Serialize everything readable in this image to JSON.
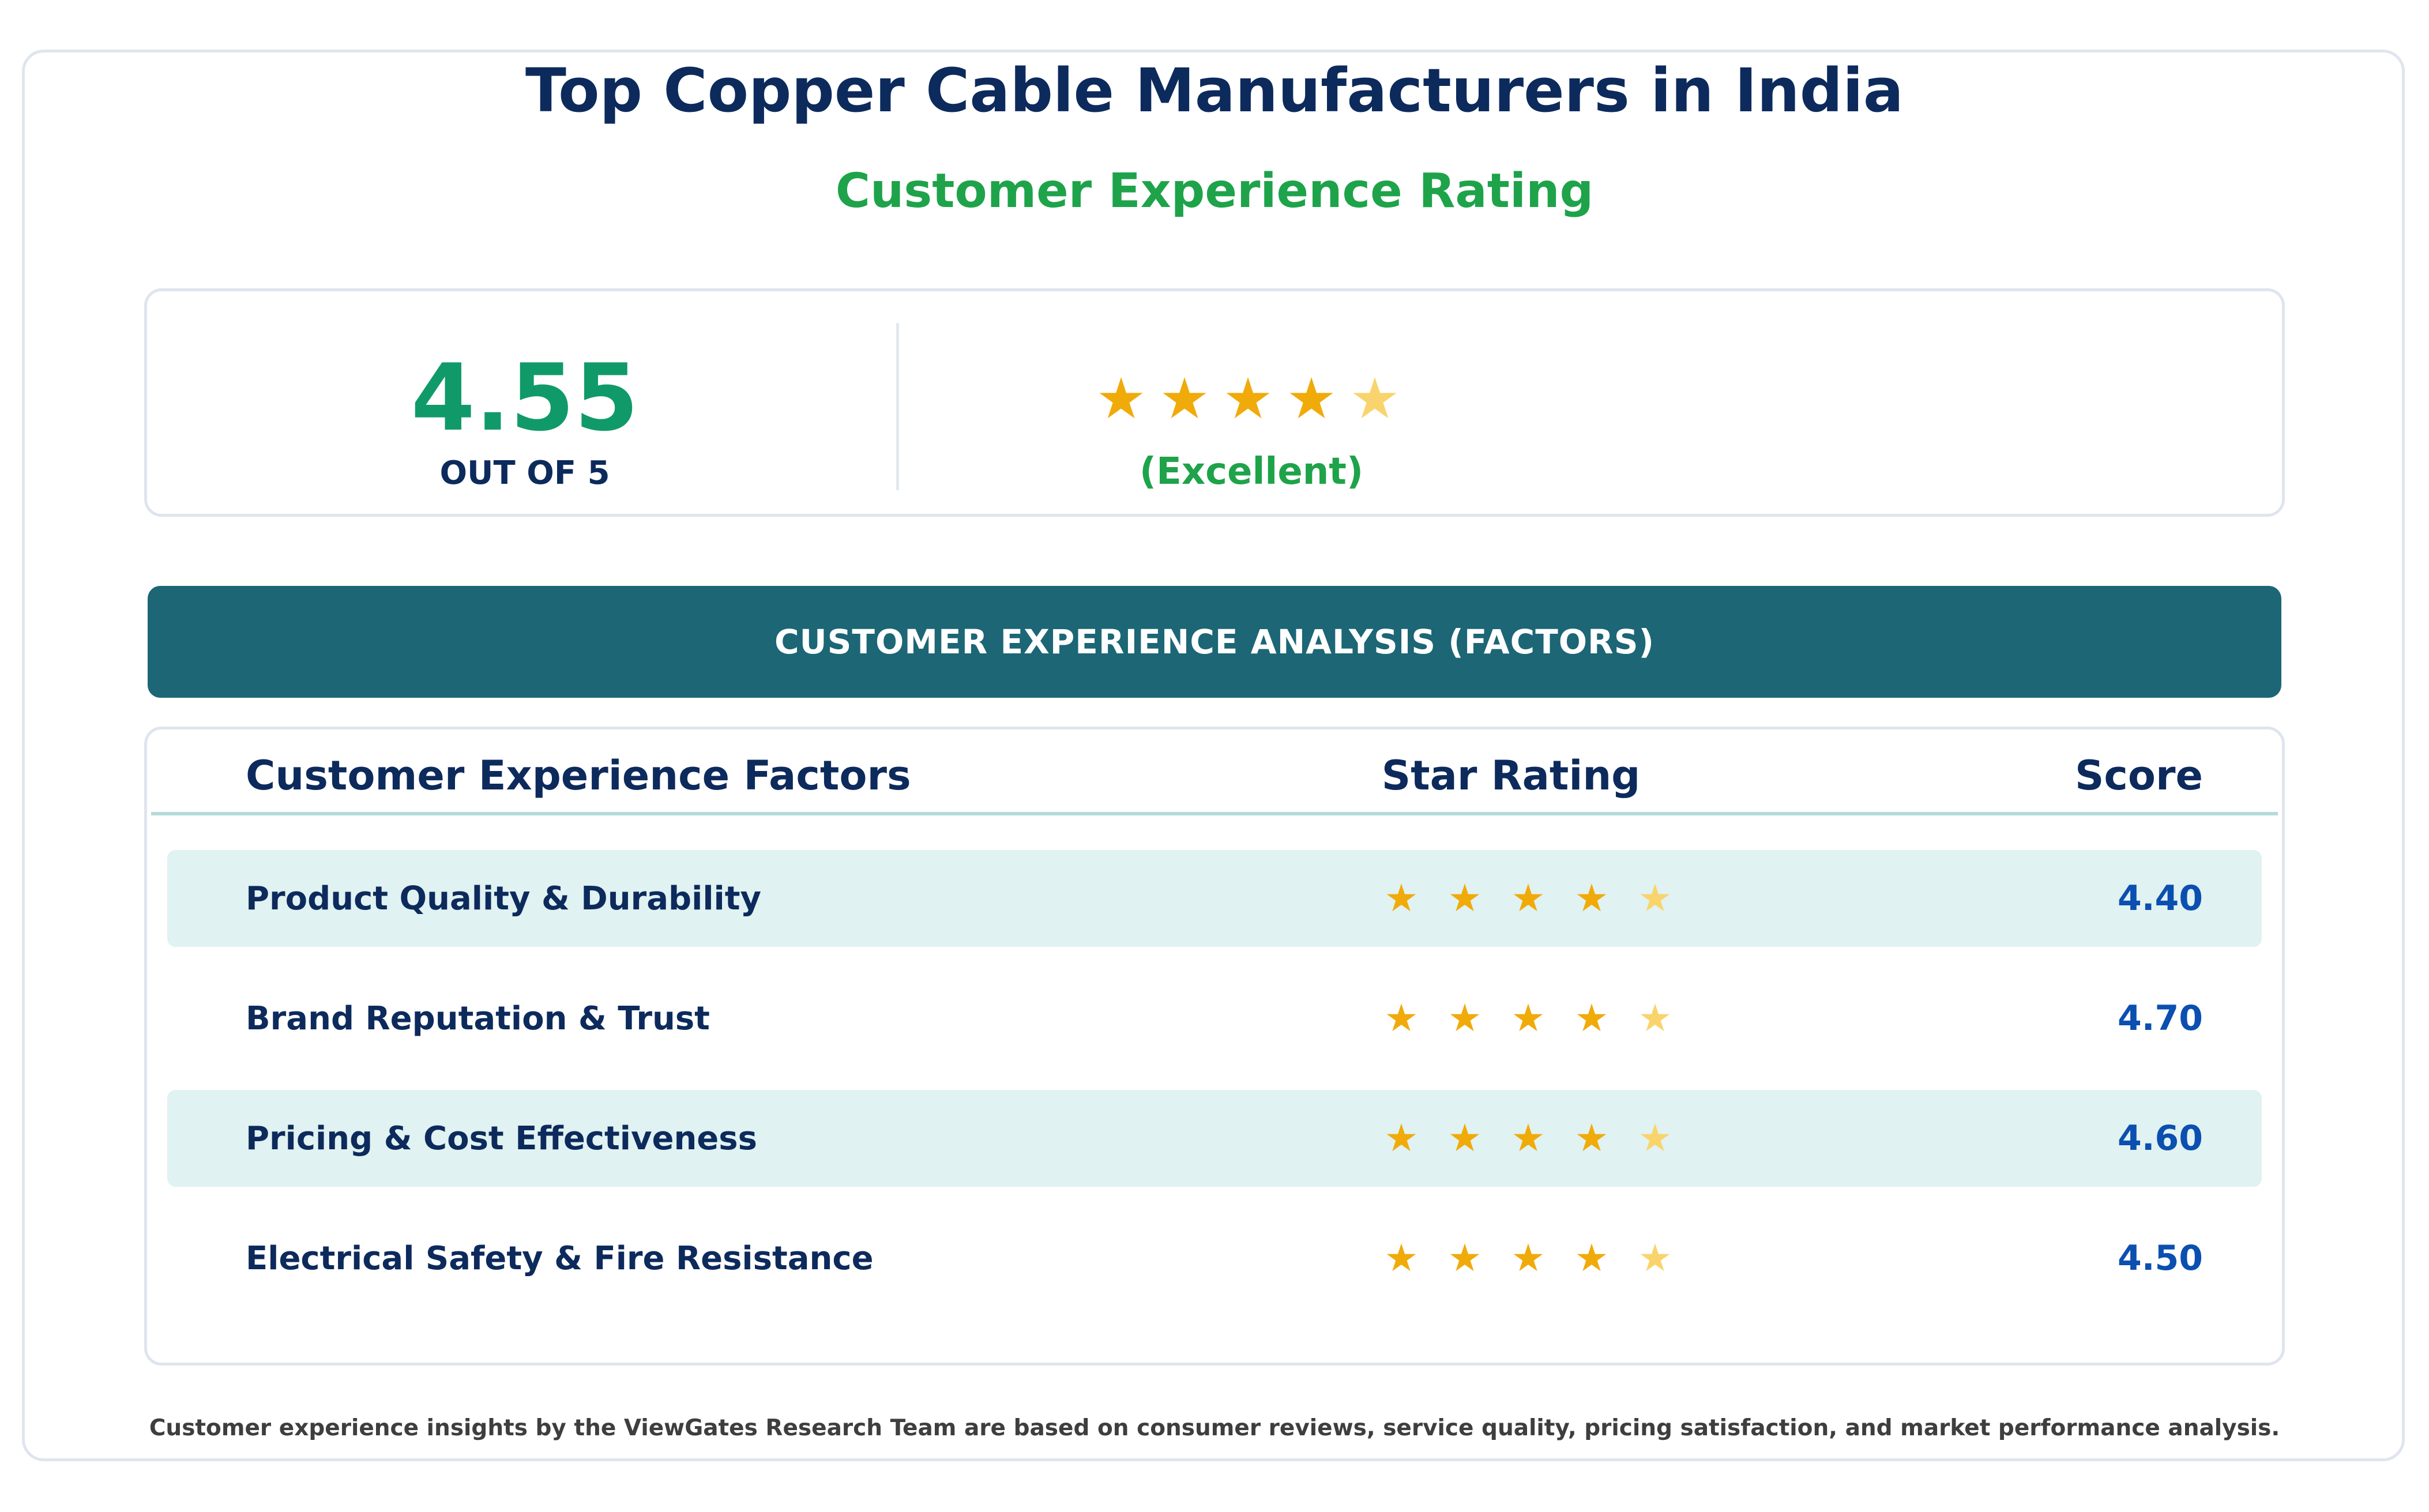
{
  "title": "Top Copper Cable Manufacturers in India",
  "subtitle": "Customer Experience Rating",
  "summary": {
    "score": "4.55",
    "scale_label": "OUT OF 5",
    "rating": 4.55,
    "stars": [
      "★",
      "★",
      "★",
      "★",
      "★"
    ],
    "label": "(Excellent)"
  },
  "banner": "CUSTOMER EXPERIENCE ANALYSIS (FACTORS)",
  "table": {
    "columns": [
      "Customer Experience Factors",
      "Star Rating",
      "Score"
    ],
    "rows": [
      {
        "factor": "Product Quality & Durability",
        "score": "4.40",
        "rating": 4.4,
        "stars": [
          "★",
          "★",
          "★",
          "★",
          "★"
        ]
      },
      {
        "factor": "Brand Reputation & Trust",
        "score": "4.70",
        "rating": 4.7,
        "stars": [
          "★",
          "★",
          "★",
          "★",
          "★"
        ]
      },
      {
        "factor": "Pricing & Cost Effectiveness",
        "score": "4.60",
        "rating": 4.6,
        "stars": [
          "★",
          "★",
          "★",
          "★",
          "★"
        ]
      },
      {
        "factor": "Electrical Safety & Fire Resistance",
        "score": "4.50",
        "rating": 4.5,
        "stars": [
          "★",
          "★",
          "★",
          "★",
          "★"
        ]
      }
    ]
  },
  "colors": {
    "title": "#0d2a5c",
    "accent_green": "#1ea34a",
    "score_green": "#109a6a",
    "banner": "#1c6675",
    "row_shade": "#e0f2f1",
    "star_full": "#f0ab0a",
    "star_partial": "#f9d46d",
    "score_blue": "#0b4fb0"
  },
  "footer": "Customer experience insights by the ViewGates Research Team are based on consumer reviews, service quality, pricing satisfaction, and market performance analysis."
}
